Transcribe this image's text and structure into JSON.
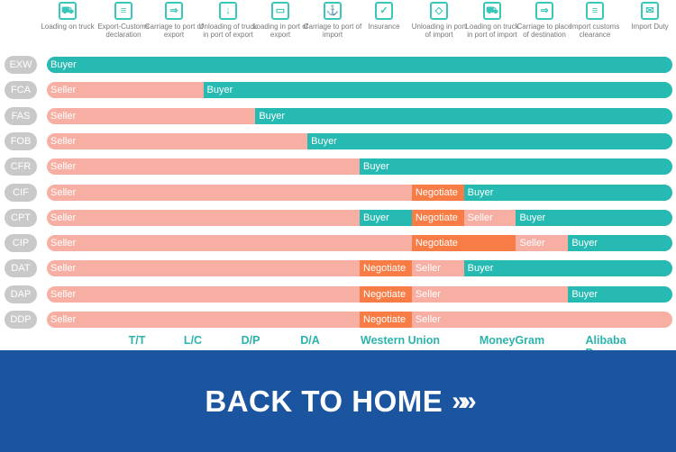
{
  "steps": [
    {
      "label": "Loading on truck",
      "icon": "truck-loading-icon",
      "glyph": "⛟"
    },
    {
      "label": "Export-Customs declaration",
      "icon": "clipboard-icon",
      "glyph": "≡"
    },
    {
      "label": "Carriage to port of export",
      "icon": "delivery-truck-icon",
      "glyph": "⇒"
    },
    {
      "label": "Unloading of truck in port of export",
      "icon": "box-unload-icon",
      "glyph": "↓"
    },
    {
      "label": "Loading in port of export",
      "icon": "conveyor-icon",
      "glyph": "▭"
    },
    {
      "label": "Carriage to port of import",
      "icon": "ship-icon",
      "glyph": "⚓"
    },
    {
      "label": "Insurance",
      "icon": "insurance-box-icon",
      "glyph": "✓"
    },
    {
      "label": "Unloading in port of import",
      "icon": "box-icon",
      "glyph": "◇"
    },
    {
      "label": "Loading on truck in port of import",
      "icon": "truck-icon",
      "glyph": "⛟"
    },
    {
      "label": "Carriage to place of destination",
      "icon": "delivery-truck-icon",
      "glyph": "⇒"
    },
    {
      "label": "Import customs clearance",
      "icon": "clipboard-icon",
      "glyph": "≡"
    },
    {
      "label": "Import Duty",
      "icon": "tax-envelope-icon",
      "glyph": "✉"
    }
  ],
  "colors": {
    "Buyer": "#26bab2",
    "Seller": "#f7afa4",
    "Negotiate": "#f87c45",
    "label": "#c9c9c9",
    "banner": "#1b55a0"
  },
  "terms": [
    {
      "code": "EXW",
      "segments": [
        {
          "role": "Buyer",
          "cols": 12
        }
      ]
    },
    {
      "code": "FCA",
      "segments": [
        {
          "role": "Seller",
          "cols": 3
        },
        {
          "role": "Buyer",
          "cols": 9
        }
      ]
    },
    {
      "code": "FAS",
      "segments": [
        {
          "role": "Seller",
          "cols": 4
        },
        {
          "role": "Buyer",
          "cols": 8
        }
      ]
    },
    {
      "code": "FOB",
      "segments": [
        {
          "role": "Seller",
          "cols": 5
        },
        {
          "role": "Buyer",
          "cols": 7
        }
      ]
    },
    {
      "code": "CFR",
      "segments": [
        {
          "role": "Seller",
          "cols": 6
        },
        {
          "role": "Buyer",
          "cols": 6
        }
      ]
    },
    {
      "code": "CIF",
      "segments": [
        {
          "role": "Seller",
          "cols": 7
        },
        {
          "role": "Negotiate",
          "cols": 1
        },
        {
          "role": "Buyer",
          "cols": 4
        }
      ]
    },
    {
      "code": "CPT",
      "segments": [
        {
          "role": "Seller",
          "cols": 6
        },
        {
          "role": "Buyer",
          "cols": 1
        },
        {
          "role": "Negotiate",
          "cols": 1
        },
        {
          "role": "Seller",
          "cols": 1
        },
        {
          "role": "Buyer",
          "cols": 3
        }
      ]
    },
    {
      "code": "CIP",
      "segments": [
        {
          "role": "Seller",
          "cols": 7
        },
        {
          "role": "Negotiate",
          "cols": 2
        },
        {
          "role": "Seller",
          "cols": 1
        },
        {
          "role": "Buyer",
          "cols": 2
        }
      ]
    },
    {
      "code": "DAT",
      "segments": [
        {
          "role": "Seller",
          "cols": 6
        },
        {
          "role": "Negotiate",
          "cols": 1
        },
        {
          "role": "Seller",
          "cols": 1
        },
        {
          "role": "Buyer",
          "cols": 4
        }
      ]
    },
    {
      "code": "DAP",
      "segments": [
        {
          "role": "Seller",
          "cols": 6
        },
        {
          "role": "Negotiate",
          "cols": 1
        },
        {
          "role": "Seller",
          "cols": 3
        },
        {
          "role": "Buyer",
          "cols": 2
        }
      ]
    },
    {
      "code": "DDP",
      "segments": [
        {
          "role": "Seller",
          "cols": 6
        },
        {
          "role": "Negotiate",
          "cols": 1
        },
        {
          "role": "Seller",
          "cols": 5
        }
      ]
    }
  ],
  "payments": [
    "T/T",
    "L/C",
    "D/P",
    "D/A",
    "Western Union",
    "MoneyGram",
    "Alibaba Pay"
  ],
  "banner": {
    "label": "BACK TO HOME",
    "arrow": "»»"
  }
}
